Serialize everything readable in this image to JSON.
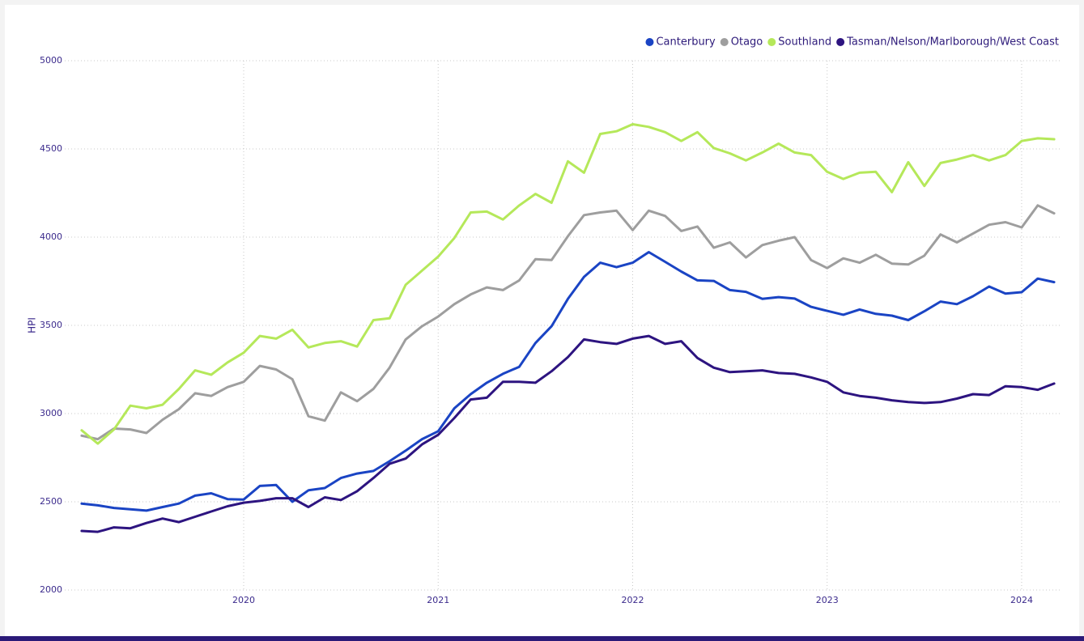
{
  "chart_data": {
    "type": "line",
    "y_label": "HPI",
    "x": [
      2019.167,
      2019.25,
      2019.333,
      2019.417,
      2019.5,
      2019.583,
      2019.667,
      2019.75,
      2019.833,
      2019.917,
      2020,
      2020.083,
      2020.167,
      2020.25,
      2020.333,
      2020.417,
      2020.5,
      2020.583,
      2020.667,
      2020.75,
      2020.833,
      2020.917,
      2021,
      2021.083,
      2021.167,
      2021.25,
      2021.333,
      2021.417,
      2021.5,
      2021.583,
      2021.667,
      2021.75,
      2021.833,
      2021.917,
      2022,
      2022.083,
      2022.167,
      2022.25,
      2022.333,
      2022.417,
      2022.5,
      2022.583,
      2022.667,
      2022.75,
      2022.833,
      2022.917,
      2023,
      2023.083,
      2023.167,
      2023.25,
      2023.333,
      2023.417,
      2023.5,
      2023.583,
      2023.667,
      2023.75,
      2023.833,
      2023.917,
      2024,
      2024.083,
      2024.167
    ],
    "series": [
      {
        "name": "Canterbury",
        "color": "#1a44c4",
        "values": [
          2490,
          2480,
          2465,
          2458,
          2450,
          2470,
          2490,
          2535,
          2548,
          2515,
          2513,
          2590,
          2595,
          2500,
          2565,
          2578,
          2635,
          2660,
          2675,
          2730,
          2790,
          2855,
          2900,
          3030,
          3110,
          3175,
          3225,
          3265,
          3400,
          3495,
          3650,
          3775,
          3855,
          3830,
          3855,
          3915,
          3860,
          3805,
          3755,
          3752,
          3700,
          3690,
          3650,
          3660,
          3652,
          3605,
          3582,
          3560,
          3590,
          3565,
          3555,
          3530,
          3580,
          3635,
          3620,
          3665,
          3720,
          3680,
          3688,
          3765,
          3745
        ]
      },
      {
        "name": "Otago",
        "color": "#9e9e9e",
        "values": [
          2875,
          2855,
          2915,
          2910,
          2890,
          2965,
          3025,
          3115,
          3100,
          3150,
          3180,
          3270,
          3250,
          3195,
          2985,
          2960,
          3120,
          3070,
          3140,
          3260,
          3420,
          3495,
          3550,
          3620,
          3675,
          3715,
          3700,
          3755,
          3875,
          3870,
          4005,
          4125,
          4140,
          4150,
          4040,
          4150,
          4120,
          4035,
          4060,
          3940,
          3970,
          3885,
          3955,
          3980,
          4000,
          3870,
          3825,
          3880,
          3855,
          3900,
          3850,
          3845,
          3895,
          4015,
          3970,
          4020,
          4070,
          4085,
          4055,
          4180,
          4135
        ]
      },
      {
        "name": "Southland",
        "color": "#b5e85a",
        "values": [
          2905,
          2830,
          2910,
          3045,
          3030,
          3050,
          3140,
          3245,
          3220,
          3290,
          3345,
          3440,
          3425,
          3475,
          3375,
          3400,
          3410,
          3380,
          3530,
          3540,
          3730,
          3810,
          3890,
          3995,
          4140,
          4145,
          4100,
          4180,
          4245,
          4195,
          4430,
          4365,
          4585,
          4600,
          4640,
          4625,
          4595,
          4545,
          4595,
          4505,
          4475,
          4435,
          4480,
          4530,
          4480,
          4465,
          4370,
          4330,
          4365,
          4370,
          4255,
          4425,
          4290,
          4420,
          4440,
          4465,
          4435,
          4465,
          4545,
          4560,
          4555
        ]
      },
      {
        "name": "Tasman/Nelson/Marlborough/West Coast",
        "color": "#2d1480",
        "values": [
          2335,
          2330,
          2355,
          2350,
          2380,
          2405,
          2385,
          2415,
          2445,
          2475,
          2495,
          2505,
          2520,
          2520,
          2470,
          2525,
          2510,
          2560,
          2635,
          2715,
          2745,
          2825,
          2880,
          2975,
          3080,
          3090,
          3180,
          3180,
          3175,
          3240,
          3320,
          3420,
          3405,
          3395,
          3425,
          3440,
          3395,
          3410,
          3315,
          3260,
          3235,
          3240,
          3245,
          3230,
          3225,
          3205,
          3180,
          3120,
          3100,
          3090,
          3075,
          3065,
          3060,
          3065,
          3085,
          3110,
          3105,
          3155,
          3150,
          3135,
          3170
        ]
      }
    ],
    "xlim": [
      2019.08,
      2024.2
    ],
    "xticks": [
      2020,
      2021,
      2022,
      2023,
      2024
    ],
    "ylim": [
      2000,
      5000
    ],
    "yticks": [
      2000,
      2500,
      3000,
      3500,
      4000,
      4500,
      5000
    ],
    "grid": true,
    "legend_position": "top-right"
  }
}
